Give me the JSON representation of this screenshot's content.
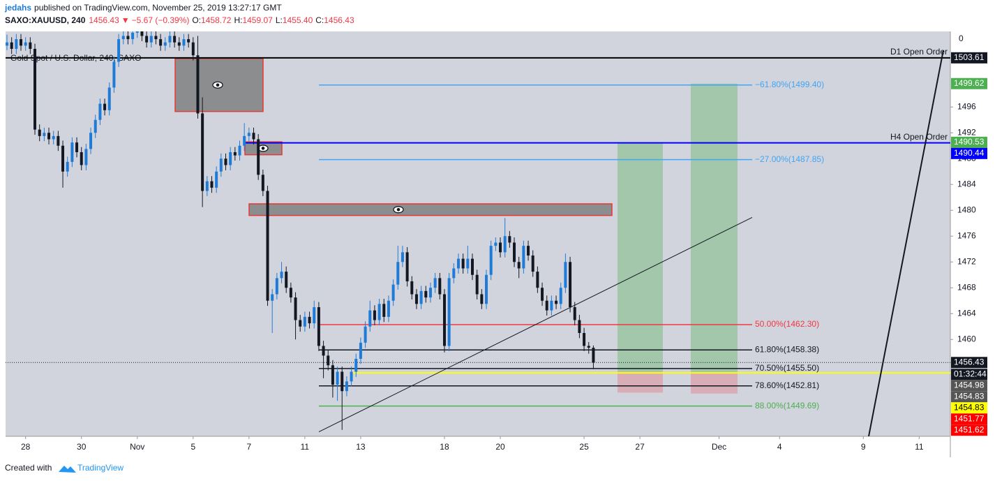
{
  "header": {
    "author": "jedahs",
    "published": "published on TradingView.com, November 25, 2019 13:27:17 GMT",
    "quote": {
      "symbol": "SAXO:XAUUSD, 240",
      "last": "1456.43",
      "arrow": "▼",
      "change": "−5.67 (−0.39%)",
      "fields": [
        {
          "key": "O:",
          "value": "1458.72"
        },
        {
          "key": "H:",
          "value": "1459.07"
        },
        {
          "key": "L:",
          "value": "1455.40"
        },
        {
          "key": "C:",
          "value": "1456.43"
        }
      ]
    }
  },
  "footer": {
    "created": "Created with",
    "brand": "TradingView"
  },
  "chart_data": {
    "type": "candlestick",
    "title": "Gold Spot / U.S. Dollar, 240, SAXO",
    "axis_top_label": "0",
    "up_color": "#1e7bd8",
    "down_color": "#131722",
    "ylim": [
      1445.0,
      1507.7
    ],
    "yticks": [
      1460,
      1464,
      1468,
      1472,
      1476,
      1480,
      1484,
      1488,
      1492,
      1496
    ],
    "xlim": [
      -0.3,
      202.7
    ],
    "xticks": [
      {
        "value": 4,
        "label": "28"
      },
      {
        "value": 16,
        "label": "30"
      },
      {
        "value": 28,
        "label": "Nov"
      },
      {
        "value": 40,
        "label": "5"
      },
      {
        "value": 52,
        "label": "7"
      },
      {
        "value": 64,
        "label": "11"
      },
      {
        "value": 76,
        "label": "13"
      },
      {
        "value": 94,
        "label": "18"
      },
      {
        "value": 106,
        "label": "20"
      },
      {
        "value": 124,
        "label": "25"
      },
      {
        "value": 136,
        "label": "27"
      },
      {
        "value": 153,
        "label": "Dec"
      },
      {
        "value": 166,
        "label": "4"
      },
      {
        "value": 184,
        "label": "9"
      },
      {
        "value": 196,
        "label": "11"
      }
    ],
    "candles": [
      [
        1505.5,
        1507.2,
        1504.8,
        1506
      ],
      [
        1506,
        1506.8,
        1504.2,
        1505
      ],
      [
        1505,
        1507.3,
        1504.2,
        1506.5
      ],
      [
        1506.5,
        1507.3,
        1504.7,
        1505.5
      ],
      [
        1505.5,
        1506.8,
        1504.7,
        1506
      ],
      [
        1506,
        1506.8,
        1504.2,
        1505
      ],
      [
        1505,
        1505.8,
        1491.7,
        1492.5
      ],
      [
        1492.5,
        1493.3,
        1490.7,
        1491.5
      ],
      [
        1491.5,
        1492.8,
        1490.7,
        1492
      ],
      [
        1492,
        1492.8,
        1490.2,
        1491
      ],
      [
        1491,
        1492.3,
        1490.2,
        1491.5
      ],
      [
        1491.5,
        1492.3,
        1489.2,
        1490
      ],
      [
        1490,
        1490.8,
        1483.5,
        1486
      ],
      [
        1486,
        1488.3,
        1485.2,
        1487.5
      ],
      [
        1487.5,
        1491.3,
        1486.7,
        1490.5
      ],
      [
        1490.5,
        1491.3,
        1488.2,
        1489
      ],
      [
        1489,
        1489.8,
        1486.2,
        1487
      ],
      [
        1487,
        1490.3,
        1486.2,
        1489.5
      ],
      [
        1489.5,
        1492.8,
        1488.7,
        1492
      ],
      [
        1492,
        1494.8,
        1491.2,
        1494
      ],
      [
        1494,
        1497.3,
        1493.2,
        1496.5
      ],
      [
        1496.5,
        1497.3,
        1494.7,
        1495.5
      ],
      [
        1495.5,
        1499.8,
        1494.7,
        1499
      ],
      [
        1499,
        1503.8,
        1498.2,
        1503
      ],
      [
        1503,
        1507.3,
        1502.2,
        1506.5
      ],
      [
        1506.5,
        1507.8,
        1505.7,
        1507
      ],
      [
        1507,
        1507.8,
        1505.7,
        1506.5
      ],
      [
        1506.5,
        1508.3,
        1505.7,
        1507.5
      ],
      [
        1507.5,
        1508.8,
        1506.7,
        1508
      ],
      [
        1508,
        1508.8,
        1506.2,
        1507
      ],
      [
        1507,
        1507.8,
        1505.2,
        1506
      ],
      [
        1506,
        1507.8,
        1505.2,
        1507
      ],
      [
        1507,
        1507.8,
        1505.7,
        1506.5
      ],
      [
        1506.5,
        1507.3,
        1504.7,
        1505.5
      ],
      [
        1505.5,
        1506.8,
        1504.7,
        1506
      ],
      [
        1506,
        1507.8,
        1505.2,
        1507
      ],
      [
        1507,
        1507.8,
        1505.2,
        1506
      ],
      [
        1506,
        1506.8,
        1504.7,
        1505.5
      ],
      [
        1505.5,
        1507.3,
        1504.7,
        1506.5
      ],
      [
        1506.5,
        1507.3,
        1505.2,
        1506
      ],
      [
        1506,
        1506.8,
        1503.2,
        1504
      ],
      [
        1504,
        1507,
        1494.2,
        1495
      ],
      [
        1495,
        1497.5,
        1480.5,
        1483
      ],
      [
        1483,
        1485.3,
        1482.2,
        1484.5
      ],
      [
        1484.5,
        1485.3,
        1482.7,
        1483.5
      ],
      [
        1483.5,
        1486.8,
        1482.7,
        1486
      ],
      [
        1486,
        1488.8,
        1485.2,
        1488
      ],
      [
        1488,
        1488.8,
        1486.2,
        1487
      ],
      [
        1487,
        1489.8,
        1486.2,
        1489
      ],
      [
        1489,
        1489.8,
        1487.7,
        1488.5
      ],
      [
        1488.5,
        1490.8,
        1487.7,
        1490
      ],
      [
        1490,
        1493.5,
        1489.2,
        1491.5
      ],
      [
        1491.5,
        1492.8,
        1490.7,
        1492
      ],
      [
        1492,
        1492.8,
        1490.2,
        1491
      ],
      [
        1491,
        1491.8,
        1484.7,
        1485.5
      ],
      [
        1485.5,
        1486.3,
        1482.2,
        1483
      ],
      [
        1483,
        1483.8,
        1465.2,
        1466
      ],
      [
        1466,
        1467.8,
        1461,
        1467
      ],
      [
        1467,
        1470.3,
        1466.2,
        1469.5
      ],
      [
        1469.5,
        1472,
        1468.7,
        1470.5
      ],
      [
        1470.5,
        1471.3,
        1467.2,
        1468
      ],
      [
        1468,
        1468.8,
        1465.7,
        1466.5
      ],
      [
        1466.5,
        1467.3,
        1460,
        1463
      ],
      [
        1463,
        1463.8,
        1461.2,
        1462
      ],
      [
        1462,
        1464.3,
        1461.2,
        1463.5
      ],
      [
        1463.5,
        1464.3,
        1461.7,
        1462.5
      ],
      [
        1462.5,
        1466,
        1461.7,
        1465
      ],
      [
        1465,
        1465.8,
        1458.2,
        1459
      ],
      [
        1459,
        1459.8,
        1454,
        1457.5
      ],
      [
        1457.5,
        1458.3,
        1455.2,
        1456
      ],
      [
        1456,
        1456.8,
        1451,
        1453
      ],
      [
        1453,
        1455.8,
        1450.5,
        1455
      ],
      [
        1455,
        1455.8,
        1446,
        1452
      ],
      [
        1452,
        1454.3,
        1451.2,
        1453.5
      ],
      [
        1453.5,
        1455.8,
        1452.7,
        1455
      ],
      [
        1455,
        1457.8,
        1454.2,
        1457
      ],
      [
        1457,
        1460.3,
        1456.2,
        1459.5
      ],
      [
        1459.5,
        1462.8,
        1458.7,
        1462
      ],
      [
        1462,
        1466,
        1461.2,
        1464.5
      ],
      [
        1464.5,
        1465.3,
        1462.2,
        1463
      ],
      [
        1463,
        1466.3,
        1462.2,
        1465.5
      ],
      [
        1465.5,
        1466.3,
        1462.7,
        1463.5
      ],
      [
        1463.5,
        1466.8,
        1462.7,
        1466
      ],
      [
        1466,
        1469.3,
        1465.2,
        1468.5
      ],
      [
        1468.5,
        1474.5,
        1467.7,
        1472
      ],
      [
        1472,
        1474.5,
        1471.2,
        1473.5
      ],
      [
        1473.5,
        1474.3,
        1468.2,
        1469
      ],
      [
        1469,
        1469.8,
        1466.2,
        1467
      ],
      [
        1467,
        1467.8,
        1464.7,
        1465.5
      ],
      [
        1465.5,
        1468.3,
        1464.7,
        1467.5
      ],
      [
        1467.5,
        1468.3,
        1465.7,
        1466.5
      ],
      [
        1466.5,
        1468.8,
        1465.7,
        1468
      ],
      [
        1468,
        1470.3,
        1467.2,
        1469.5
      ],
      [
        1469.5,
        1470.3,
        1466.2,
        1467
      ],
      [
        1467,
        1467.8,
        1458,
        1459
      ],
      [
        1459,
        1470.3,
        1458.2,
        1469.5
      ],
      [
        1469.5,
        1471.8,
        1468.7,
        1471
      ],
      [
        1471,
        1473.3,
        1470.2,
        1472.5
      ],
      [
        1472.5,
        1473.3,
        1470.2,
        1471
      ],
      [
        1471,
        1474.5,
        1470.2,
        1472.5
      ],
      [
        1472.5,
        1473.3,
        1469.2,
        1470
      ],
      [
        1470,
        1470.8,
        1466.2,
        1467
      ],
      [
        1467,
        1467.8,
        1464.7,
        1465.5
      ],
      [
        1465.5,
        1470.8,
        1464.7,
        1470
      ],
      [
        1470,
        1475.3,
        1469.2,
        1474.5
      ],
      [
        1474.5,
        1475.8,
        1473.7,
        1475
      ],
      [
        1475,
        1475.8,
        1472.7,
        1473.5
      ],
      [
        1473.5,
        1478.8,
        1472.7,
        1476
      ],
      [
        1476,
        1476.8,
        1474.2,
        1475
      ],
      [
        1475,
        1475.8,
        1471.2,
        1472
      ],
      [
        1472,
        1472.8,
        1469.5,
        1471
      ],
      [
        1471,
        1475.3,
        1470.2,
        1474.5
      ],
      [
        1474.5,
        1475.3,
        1472.2,
        1473
      ],
      [
        1473,
        1473.8,
        1469.7,
        1470.5
      ],
      [
        1470.5,
        1471.3,
        1467.2,
        1468
      ],
      [
        1468,
        1468.8,
        1465.2,
        1466
      ],
      [
        1466,
        1466.8,
        1463.7,
        1464.5
      ],
      [
        1464.5,
        1466.8,
        1463.7,
        1466
      ],
      [
        1466,
        1466.8,
        1464.7,
        1465.5
      ],
      [
        1465.5,
        1468.8,
        1464.7,
        1468
      ],
      [
        1468,
        1473.3,
        1467.2,
        1472
      ],
      [
        1472,
        1472.8,
        1464.2,
        1465
      ],
      [
        1465,
        1465.8,
        1462.2,
        1463
      ],
      [
        1463,
        1463.8,
        1460.2,
        1461
      ],
      [
        1461,
        1461.8,
        1458.2,
        1459
      ],
      [
        1459,
        1459.6,
        1457.8,
        1458.72
      ],
      [
        1458.72,
        1459.07,
        1455.4,
        1456.43
      ]
    ],
    "fib_levels": [
      {
        "label": "−61.80%(1499.40)",
        "value": 1499.4,
        "color": "#42a5f5"
      },
      {
        "label": "−27.00%(1487.85)",
        "value": 1487.85,
        "color": "#42a5f5"
      },
      {
        "label": "50.00%(1462.30)",
        "value": 1462.3,
        "color": "#f23645"
      },
      {
        "label": "61.80%(1458.38)",
        "value": 1458.38,
        "color": "#131722"
      },
      {
        "label": "70.50%(1455.50)",
        "value": 1455.5,
        "color": "#131722"
      },
      {
        "label": "78.60%(1452.81)",
        "value": 1452.81,
        "color": "#131722"
      },
      {
        "label": "88.00%(1449.69)",
        "value": 1449.69,
        "color": "#4caf50"
      }
    ],
    "levels": [
      {
        "label": "D1 Open Order",
        "value": 1503.61,
        "color": "#000000"
      },
      {
        "label": "H4 Open Order",
        "value": 1490.44,
        "color": "#0000ff"
      }
    ],
    "zones": [
      {
        "top": 1503.5,
        "bottom": 1495.3
      },
      {
        "top": 1490.6,
        "bottom": 1488.6
      },
      {
        "top": 1481.0,
        "bottom": 1479.2
      }
    ],
    "positions": [
      {
        "target": 1490.53,
        "entry": 1454.98,
        "stop": 1451.77
      },
      {
        "target": 1499.62,
        "entry": 1454.83,
        "stop": 1451.62
      }
    ],
    "yellow_line": 1454.83,
    "trendlines": [
      {
        "from": 1445.7,
        "to": 1478.9
      },
      {
        "from": 1445.0,
        "to": 1504.8
      }
    ],
    "current_price": 1456.43,
    "price_labels": [
      {
        "value": 1503.61,
        "color": "#131722"
      },
      {
        "value": 1499.62,
        "color": "#4caf50"
      },
      {
        "value": 1490.53,
        "color": "#4caf50"
      },
      {
        "value": 1490.44,
        "color": "#0000ff"
      },
      {
        "value": 1456.43,
        "color": "#131722",
        "countdown": "01:32:44"
      },
      {
        "value": 1454.98,
        "color": "#555555"
      },
      {
        "value": 1454.83,
        "color": "#555555"
      },
      {
        "value": 1454.83,
        "color": "#ffff00"
      },
      {
        "value": 1451.77,
        "color": "#ff0000"
      },
      {
        "value": 1451.62,
        "color": "#ff0000"
      }
    ]
  }
}
